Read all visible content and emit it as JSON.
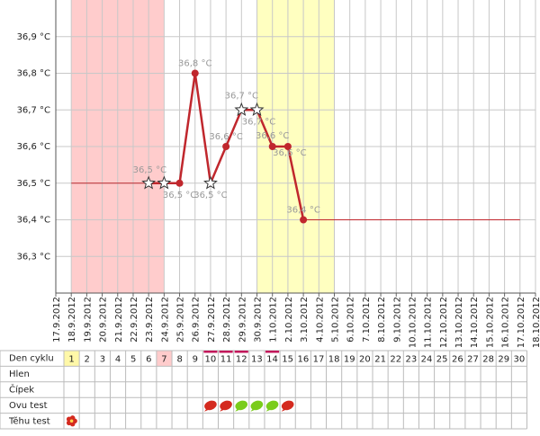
{
  "chart_data": {
    "type": "line",
    "x": [
      "17.9.2012",
      "18.9.2012",
      "19.9.2012",
      "20.9.2012",
      "21.9.2012",
      "22.9.2012",
      "23.9.2012",
      "24.9.2012",
      "25.9.2012",
      "26.9.2012",
      "27.9.2012",
      "28.9.2012",
      "29.9.2012",
      "30.9.2012",
      "1.10.2012",
      "2.10.2012",
      "3.10.2012",
      "4.10.2012",
      "5.10.2012",
      "6.10.2012",
      "7.10.2012",
      "8.10.2012",
      "9.10.2012",
      "10.10.2012",
      "11.10.2012",
      "12.10.2012",
      "13.10.2012",
      "14.10.2012",
      "15.10.2012",
      "16.10.2012",
      "17.10.2012",
      "18.10.2012"
    ],
    "ylim": [
      36.2,
      37.0
    ],
    "yticks": [
      {
        "value": 36.3,
        "label": "36,3 °C"
      },
      {
        "value": 36.4,
        "label": "36,4 °C"
      },
      {
        "value": 36.5,
        "label": "36,5 °C"
      },
      {
        "value": 36.6,
        "label": "36,6 °C"
      },
      {
        "value": 36.7,
        "label": "36,7 °C"
      },
      {
        "value": 36.8,
        "label": "36,8 °C"
      },
      {
        "value": 36.9,
        "label": "36,9 °C"
      }
    ],
    "grid": true,
    "shaded": [
      {
        "from": "18.9.2012",
        "to": "24.9.2012",
        "color": "#ffcccc"
      },
      {
        "from": "30.9.2012",
        "to": "5.10.2012",
        "color": "#ffffc0"
      }
    ],
    "series": [
      {
        "color": "#c0272d",
        "style": "thick",
        "values": [
          null,
          null,
          null,
          null,
          null,
          null,
          36.5,
          36.5,
          36.5,
          36.8,
          36.5,
          36.6,
          36.7,
          36.7,
          36.6,
          36.6,
          36.4,
          null,
          null,
          null,
          null,
          null,
          null,
          null,
          null,
          null,
          null,
          null,
          null,
          null,
          null,
          null
        ],
        "markers": [
          null,
          null,
          null,
          null,
          null,
          null,
          "star",
          "star",
          "dot",
          "dot",
          "star",
          "dot",
          "star",
          "star",
          "dot",
          "dot",
          "dot",
          null,
          null,
          null,
          null,
          null,
          null,
          null,
          null,
          null,
          null,
          null,
          null,
          null,
          null,
          null
        ],
        "value_labels": [
          null,
          null,
          null,
          null,
          null,
          null,
          null,
          "36,5 °C",
          "36,5 °C",
          "36,8 °C",
          "36,5 °C",
          "36,6 °C",
          "36,7 °C",
          "36,7 °C",
          "36,6 °C",
          "36,6 °C",
          "36,4 °C",
          null,
          null,
          null,
          null,
          null,
          null,
          null,
          null,
          null,
          null,
          null,
          null,
          null,
          null,
          null
        ]
      },
      {
        "color": "#c0272d",
        "style": "thin",
        "values": [
          null,
          36.5,
          36.5,
          36.5,
          36.5,
          36.5,
          36.5,
          null,
          null,
          null,
          null,
          null,
          null,
          null,
          null,
          null,
          36.4,
          36.4,
          36.4,
          36.4,
          36.4,
          36.4,
          36.4,
          36.4,
          36.4,
          36.4,
          36.4,
          36.4,
          36.4,
          36.4,
          36.4,
          null
        ]
      }
    ]
  },
  "table": {
    "row_labels": [
      "Den cyklu",
      "Hlen",
      "Čípek",
      "Ovu test",
      "Těhu test"
    ],
    "days": [
      1,
      2,
      3,
      4,
      5,
      6,
      7,
      8,
      9,
      10,
      11,
      12,
      13,
      14,
      15,
      16,
      17,
      18,
      19,
      20,
      21,
      22,
      23,
      24,
      25,
      26,
      27,
      28,
      29,
      30
    ],
    "day_highlights": [
      {
        "day": 1,
        "color": "#fff8a8"
      },
      {
        "day": 7,
        "color": "#ffcccc"
      }
    ],
    "underlined_days": [
      10,
      11,
      12,
      14
    ],
    "ovu_test": [
      {
        "day": 10,
        "color": "#d42a1f"
      },
      {
        "day": 11,
        "color": "#d42a1f"
      },
      {
        "day": 12,
        "color": "#7acc1c"
      },
      {
        "day": 13,
        "color": "#7acc1c"
      },
      {
        "day": 14,
        "color": "#7acc1c"
      },
      {
        "day": 15,
        "color": "#d42a1f"
      }
    ],
    "tehu_test": [
      {
        "day": 1,
        "color": "#d42a1f"
      }
    ]
  }
}
